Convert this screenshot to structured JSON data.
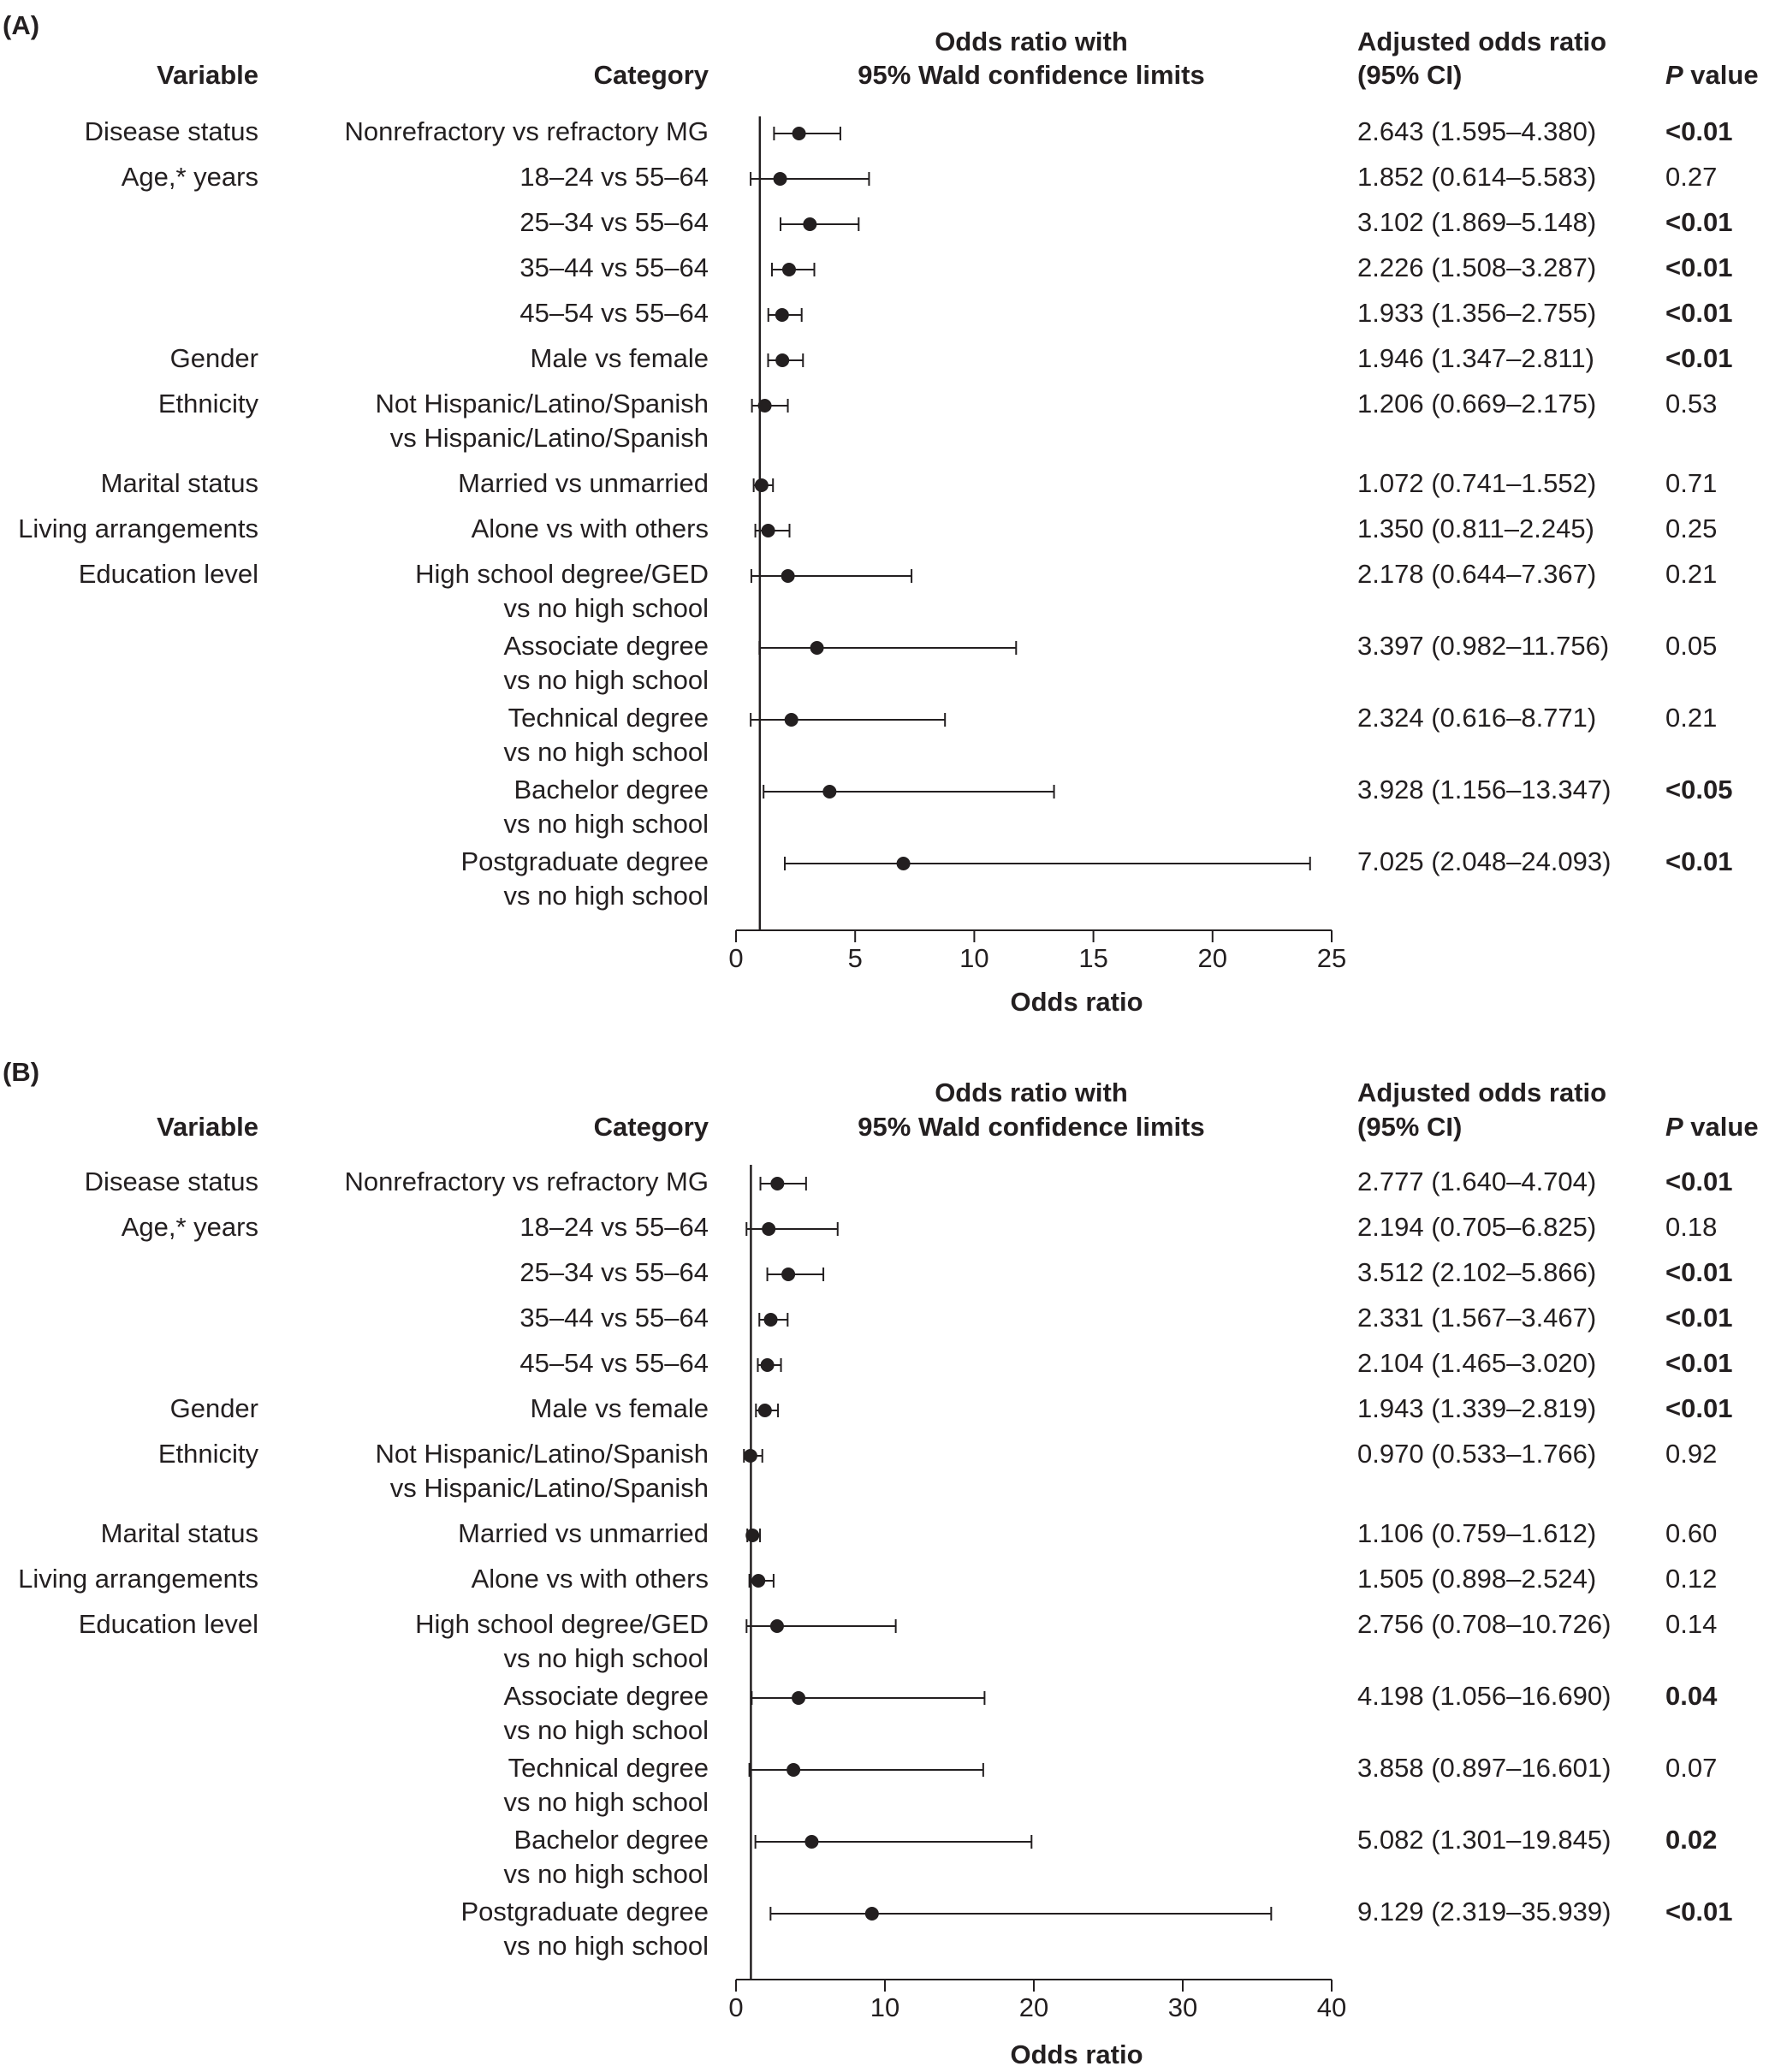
{
  "headers": {
    "variable": "Variable",
    "category": "Category",
    "or_title_line1": "Odds ratio with",
    "or_title_line2": "95% Wald confidence limits",
    "adj_line1": "Adjusted odds ratio",
    "adj_line2": "(95% CI)",
    "p_italic": "P",
    "p_rest": " value"
  },
  "chart_data": [
    {
      "type": "forest",
      "panel_label": "(A)",
      "xlabel": "Odds ratio",
      "xlim": [
        0,
        25
      ],
      "xticks": [
        0,
        5,
        10,
        15,
        20,
        25
      ],
      "reference_line": 1,
      "rows": [
        {
          "variable": "Disease status",
          "category": [
            "Nonrefractory vs refractory MG"
          ],
          "or": 2.643,
          "lo": 1.595,
          "hi": 4.38,
          "ci_text": "2.643 (1.595–4.380)",
          "p": "<0.01",
          "p_bold": true
        },
        {
          "variable": "Age,* years",
          "category": [
            "18–24 vs 55–64"
          ],
          "or": 1.852,
          "lo": 0.614,
          "hi": 5.583,
          "ci_text": "1.852 (0.614–5.583)",
          "p": "0.27",
          "p_bold": false
        },
        {
          "variable": "",
          "category": [
            "25–34 vs 55–64"
          ],
          "or": 3.102,
          "lo": 1.869,
          "hi": 5.148,
          "ci_text": "3.102 (1.869–5.148)",
          "p": "<0.01",
          "p_bold": true
        },
        {
          "variable": "",
          "category": [
            "35–44 vs 55–64"
          ],
          "or": 2.226,
          "lo": 1.508,
          "hi": 3.287,
          "ci_text": "2.226 (1.508–3.287)",
          "p": "<0.01",
          "p_bold": true
        },
        {
          "variable": "",
          "category": [
            "45–54 vs 55–64"
          ],
          "or": 1.933,
          "lo": 1.356,
          "hi": 2.755,
          "ci_text": "1.933 (1.356–2.755)",
          "p": "<0.01",
          "p_bold": true
        },
        {
          "variable": "Gender",
          "category": [
            "Male vs female"
          ],
          "or": 1.946,
          "lo": 1.347,
          "hi": 2.811,
          "ci_text": "1.946 (1.347–2.811)",
          "p": "<0.01",
          "p_bold": true
        },
        {
          "variable": "Ethnicity",
          "category": [
            "Not Hispanic/Latino/Spanish",
            "vs Hispanic/Latino/Spanish"
          ],
          "or": 1.206,
          "lo": 0.669,
          "hi": 2.175,
          "ci_text": "1.206 (0.669–2.175)",
          "p": "0.53",
          "p_bold": false
        },
        {
          "variable": "Marital status",
          "category": [
            "Married vs unmarried"
          ],
          "or": 1.072,
          "lo": 0.741,
          "hi": 1.552,
          "ci_text": "1.072 (0.741–1.552)",
          "p": "0.71",
          "p_bold": false
        },
        {
          "variable": "Living arrangements",
          "category": [
            "Alone vs with others"
          ],
          "or": 1.35,
          "lo": 0.811,
          "hi": 2.245,
          "ci_text": "1.350 (0.811–2.245)",
          "p": "0.25",
          "p_bold": false
        },
        {
          "variable": "Education level",
          "category": [
            "High school degree/GED",
            "vs no high school"
          ],
          "or": 2.178,
          "lo": 0.644,
          "hi": 7.367,
          "ci_text": "2.178 (0.644–7.367)",
          "p": "0.21",
          "p_bold": false
        },
        {
          "variable": "",
          "category": [
            "Associate degree",
            "vs no high school"
          ],
          "or": 3.397,
          "lo": 0.982,
          "hi": 11.756,
          "ci_text": "3.397 (0.982–11.756)",
          "p": "0.05",
          "p_bold": false
        },
        {
          "variable": "",
          "category": [
            "Technical degree",
            "vs no high school"
          ],
          "or": 2.324,
          "lo": 0.616,
          "hi": 8.771,
          "ci_text": "2.324 (0.616–8.771)",
          "p": "0.21",
          "p_bold": false
        },
        {
          "variable": "",
          "category": [
            "Bachelor degree",
            "vs no high school"
          ],
          "or": 3.928,
          "lo": 1.156,
          "hi": 13.347,
          "ci_text": "3.928 (1.156–13.347)",
          "p": "<0.05",
          "p_bold": true
        },
        {
          "variable": "",
          "category": [
            "Postgraduate degree",
            "vs no high school"
          ],
          "or": 7.025,
          "lo": 2.048,
          "hi": 24.093,
          "ci_text": "7.025 (2.048–24.093)",
          "p": "<0.01",
          "p_bold": true
        }
      ]
    },
    {
      "type": "forest",
      "panel_label": "(B)",
      "xlabel": "Odds ratio",
      "xlim": [
        0,
        40
      ],
      "xticks": [
        0,
        10,
        20,
        30,
        40
      ],
      "reference_line": 1,
      "rows": [
        {
          "variable": "Disease status",
          "category": [
            "Nonrefractory vs refractory MG"
          ],
          "or": 2.777,
          "lo": 1.64,
          "hi": 4.704,
          "ci_text": "2.777 (1.640–4.704)",
          "p": "<0.01",
          "p_bold": true
        },
        {
          "variable": "Age,* years",
          "category": [
            "18–24 vs 55–64"
          ],
          "or": 2.194,
          "lo": 0.705,
          "hi": 6.825,
          "ci_text": "2.194 (0.705–6.825)",
          "p": "0.18",
          "p_bold": false
        },
        {
          "variable": "",
          "category": [
            "25–34 vs 55–64"
          ],
          "or": 3.512,
          "lo": 2.102,
          "hi": 5.866,
          "ci_text": "3.512 (2.102–5.866)",
          "p": "<0.01",
          "p_bold": true
        },
        {
          "variable": "",
          "category": [
            "35–44 vs 55–64"
          ],
          "or": 2.331,
          "lo": 1.567,
          "hi": 3.467,
          "ci_text": "2.331 (1.567–3.467)",
          "p": "<0.01",
          "p_bold": true
        },
        {
          "variable": "",
          "category": [
            "45–54 vs 55–64"
          ],
          "or": 2.104,
          "lo": 1.465,
          "hi": 3.02,
          "ci_text": "2.104 (1.465–3.020)",
          "p": "<0.01",
          "p_bold": true
        },
        {
          "variable": "Gender",
          "category": [
            "Male vs female"
          ],
          "or": 1.943,
          "lo": 1.339,
          "hi": 2.819,
          "ci_text": "1.943 (1.339–2.819)",
          "p": "<0.01",
          "p_bold": true
        },
        {
          "variable": "Ethnicity",
          "category": [
            "Not Hispanic/Latino/Spanish",
            "vs Hispanic/Latino/Spanish"
          ],
          "or": 0.97,
          "lo": 0.533,
          "hi": 1.766,
          "ci_text": "0.970 (0.533–1.766)",
          "p": "0.92",
          "p_bold": false
        },
        {
          "variable": "Marital status",
          "category": [
            "Married vs unmarried"
          ],
          "or": 1.106,
          "lo": 0.759,
          "hi": 1.612,
          "ci_text": "1.106 (0.759–1.612)",
          "p": "0.60",
          "p_bold": false
        },
        {
          "variable": "Living arrangements",
          "category": [
            "Alone vs with others"
          ],
          "or": 1.505,
          "lo": 0.898,
          "hi": 2.524,
          "ci_text": "1.505 (0.898–2.524)",
          "p": "0.12",
          "p_bold": false
        },
        {
          "variable": "Education level",
          "category": [
            "High school degree/GED",
            "vs no high school"
          ],
          "or": 2.756,
          "lo": 0.708,
          "hi": 10.726,
          "ci_text": "2.756 (0.708–10.726)",
          "p": "0.14",
          "p_bold": false
        },
        {
          "variable": "",
          "category": [
            "Associate degree",
            "vs no high school"
          ],
          "or": 4.198,
          "lo": 1.056,
          "hi": 16.69,
          "ci_text": "4.198 (1.056–16.690)",
          "p": "0.04",
          "p_bold": true
        },
        {
          "variable": "",
          "category": [
            "Technical degree",
            "vs no high school"
          ],
          "or": 3.858,
          "lo": 0.897,
          "hi": 16.601,
          "ci_text": "3.858 (0.897–16.601)",
          "p": "0.07",
          "p_bold": false
        },
        {
          "variable": "",
          "category": [
            "Bachelor degree",
            "vs no high school"
          ],
          "or": 5.082,
          "lo": 1.301,
          "hi": 19.845,
          "ci_text": "5.082 (1.301–19.845)",
          "p": "0.02",
          "p_bold": true
        },
        {
          "variable": "",
          "category": [
            "Postgraduate degree",
            "vs no high school"
          ],
          "or": 9.129,
          "lo": 2.319,
          "hi": 35.939,
          "ci_text": "9.129 (2.319–35.939)",
          "p": "<0.01",
          "p_bold": true
        }
      ]
    }
  ]
}
